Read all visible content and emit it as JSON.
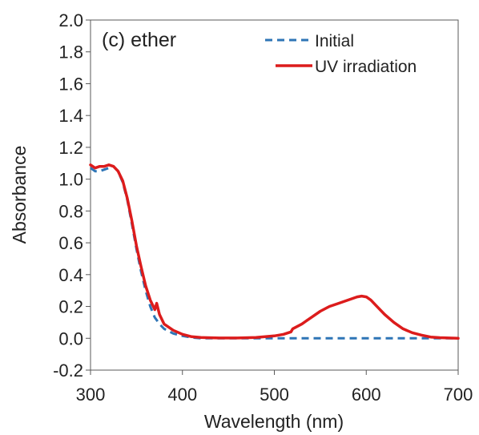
{
  "chart_data": {
    "type": "line",
    "panel_label": "(c) ether",
    "xlabel": "Wavelength (nm)",
    "ylabel": "Absorbance",
    "xlim": [
      300,
      700
    ],
    "ylim": [
      -0.2,
      2.0
    ],
    "xticks": [
      "300",
      "400",
      "500",
      "600",
      "700"
    ],
    "yticks": [
      "-0.2",
      "0.0",
      "0.2",
      "0.4",
      "0.6",
      "0.8",
      "1.0",
      "1.2",
      "1.4",
      "1.6",
      "1.8",
      "2.0"
    ],
    "grid": false,
    "legend_position": "top-right",
    "series": [
      {
        "name": "Initial",
        "style": "dashed",
        "color": "#2e75b6",
        "x": [
          300,
          305,
          310,
          315,
          320,
          325,
          330,
          335,
          340,
          345,
          350,
          355,
          360,
          365,
          370,
          375,
          380,
          390,
          400,
          410,
          420,
          440,
          460,
          480,
          500,
          520,
          540,
          560,
          580,
          600,
          620,
          640,
          660,
          680,
          700
        ],
        "y": [
          1.07,
          1.05,
          1.05,
          1.06,
          1.07,
          1.08,
          1.05,
          0.98,
          0.87,
          0.72,
          0.56,
          0.42,
          0.3,
          0.2,
          0.13,
          0.09,
          0.06,
          0.03,
          0.015,
          0.005,
          0.0,
          0.0,
          0.0,
          0.0,
          0.0,
          0.0,
          0.0,
          0.0,
          0.0,
          0.0,
          0.0,
          0.0,
          0.0,
          0.0,
          0.0
        ]
      },
      {
        "name": "UV irradiation",
        "style": "solid",
        "color": "#dc1c1c",
        "x": [
          300,
          305,
          310,
          315,
          320,
          325,
          330,
          335,
          340,
          345,
          350,
          355,
          360,
          365,
          370,
          372,
          375,
          380,
          390,
          400,
          410,
          420,
          440,
          460,
          480,
          500,
          510,
          518,
          520,
          530,
          540,
          550,
          560,
          570,
          580,
          590,
          595,
          600,
          605,
          610,
          620,
          630,
          640,
          650,
          660,
          670,
          680,
          690,
          700
        ],
        "y": [
          1.09,
          1.07,
          1.08,
          1.08,
          1.09,
          1.08,
          1.05,
          0.99,
          0.88,
          0.74,
          0.58,
          0.45,
          0.33,
          0.24,
          0.18,
          0.22,
          0.15,
          0.09,
          0.05,
          0.025,
          0.01,
          0.005,
          0.002,
          0.002,
          0.005,
          0.015,
          0.025,
          0.04,
          0.06,
          0.09,
          0.13,
          0.17,
          0.2,
          0.22,
          0.24,
          0.26,
          0.265,
          0.26,
          0.24,
          0.21,
          0.15,
          0.1,
          0.06,
          0.035,
          0.02,
          0.008,
          0.004,
          0.002,
          0.0
        ]
      }
    ]
  }
}
